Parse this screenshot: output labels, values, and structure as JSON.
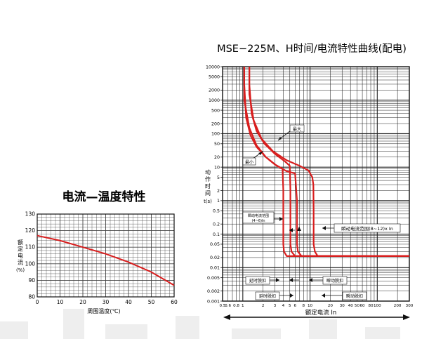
{
  "chart_data": [
    {
      "type": "line",
      "title": "电流—温度特性",
      "xlabel": "周围温度(℃)",
      "ylabel": "额定电流(%)",
      "xlim": [
        0,
        60
      ],
      "ylim": [
        80,
        130
      ],
      "xticks": [
        0,
        10,
        20,
        30,
        40,
        50,
        60
      ],
      "yticks": [
        80,
        90,
        100,
        110,
        120,
        130
      ],
      "grid": true,
      "color": "#d81e1e",
      "series": [
        {
          "x": [
            0,
            10,
            20,
            30,
            40,
            50,
            60
          ],
          "y": [
            117,
            114,
            110,
            106,
            101,
            95,
            87
          ]
        }
      ]
    },
    {
      "type": "line",
      "title": "MSE−225M、H时间/电流特性曲线(配电)",
      "xlabel": "额定电流 In",
      "ylabel": "动作时间t(s)",
      "xscale": "log",
      "yscale": "log",
      "xlim": [
        0.5,
        300
      ],
      "ylim": [
        0.001,
        10000
      ],
      "xticks": [
        0.5,
        0.6,
        0.8,
        1,
        2,
        3,
        4,
        5,
        6,
        8,
        10,
        20,
        30,
        40,
        50,
        60,
        80,
        100,
        200,
        300
      ],
      "xticklabels": [
        "0.5",
        "0.6",
        "0.8",
        "1",
        "2",
        "3",
        "4",
        "5",
        "6",
        "8",
        "10",
        "20",
        "30",
        "40",
        "50",
        "60",
        "80",
        "100",
        "200",
        "300"
      ],
      "yticks": [
        10000,
        5000,
        2000,
        1000,
        500,
        200,
        100,
        50,
        20,
        10,
        5,
        2,
        1,
        0.5,
        0.2,
        0.1,
        0.05,
        0.02,
        0.01,
        0.005,
        0.002,
        0.001
      ],
      "yticklabels": [
        "10000",
        "5000",
        "2000",
        "1000",
        "500",
        "200",
        "100",
        "50",
        "20",
        "10",
        "5",
        "2",
        "1",
        "0.5",
        "0.2",
        "0.1",
        "0.05",
        "0.02",
        "0.01",
        "0.005",
        "0.002",
        "0.001"
      ],
      "grid": true,
      "color": "#d81e1e",
      "curves": [
        {
          "x": [
            1.05,
            1.05,
            1.12,
            1.3,
            1.6,
            2.2,
            3.0,
            3.9,
            4.0,
            4.0,
            4.1,
            4.5,
            300
          ],
          "y": [
            10000,
            3000,
            300,
            90,
            40,
            20,
            12,
            9,
            2,
            0.05,
            0.03,
            0.022,
            0.022
          ]
        },
        {
          "x": [
            1.25,
            1.25,
            1.35,
            1.6,
            2.1,
            3.0,
            4.2,
            5.0,
            5.1,
            5.1,
            5.3,
            6.0,
            300
          ],
          "y": [
            10000,
            3000,
            400,
            120,
            50,
            25,
            15,
            11,
            2,
            0.05,
            0.03,
            0.022,
            0.022
          ]
        },
        {
          "x": [
            1.05,
            1.05,
            1.25,
            1.6,
            2.2,
            3.2,
            4.5,
            6.0,
            6.4,
            6.4,
            6.6,
            7.5,
            300
          ],
          "y": [
            10000,
            1000,
            150,
            45,
            20,
            11,
            7.5,
            6.5,
            1,
            0.05,
            0.03,
            0.022,
            0.022
          ]
        },
        {
          "x": [
            1.25,
            1.25,
            1.45,
            1.9,
            2.8,
            4.5,
            7.0,
            9.5,
            10.8,
            11.2,
            11.3,
            11.3,
            11.8,
            13,
            300
          ],
          "y": [
            10000,
            1500,
            250,
            70,
            30,
            16,
            11,
            8,
            5,
            3,
            0.5,
            0.05,
            0.03,
            0.022,
            0.022
          ]
        }
      ],
      "annotations": {
        "max": "最大",
        "min": "最小",
        "instant_range_small": "瞬动电流范围",
        "instant_range_small_sub": "(4~6)In",
        "instant_range_large": "瞬动电流范围(8~12)x In",
        "delay_release_1": "延时脱扣",
        "instant_release_1": "瞬动脱扣",
        "delay_release_2": "延时脱扣",
        "instant_release_2": "瞬动脱扣"
      }
    }
  ]
}
